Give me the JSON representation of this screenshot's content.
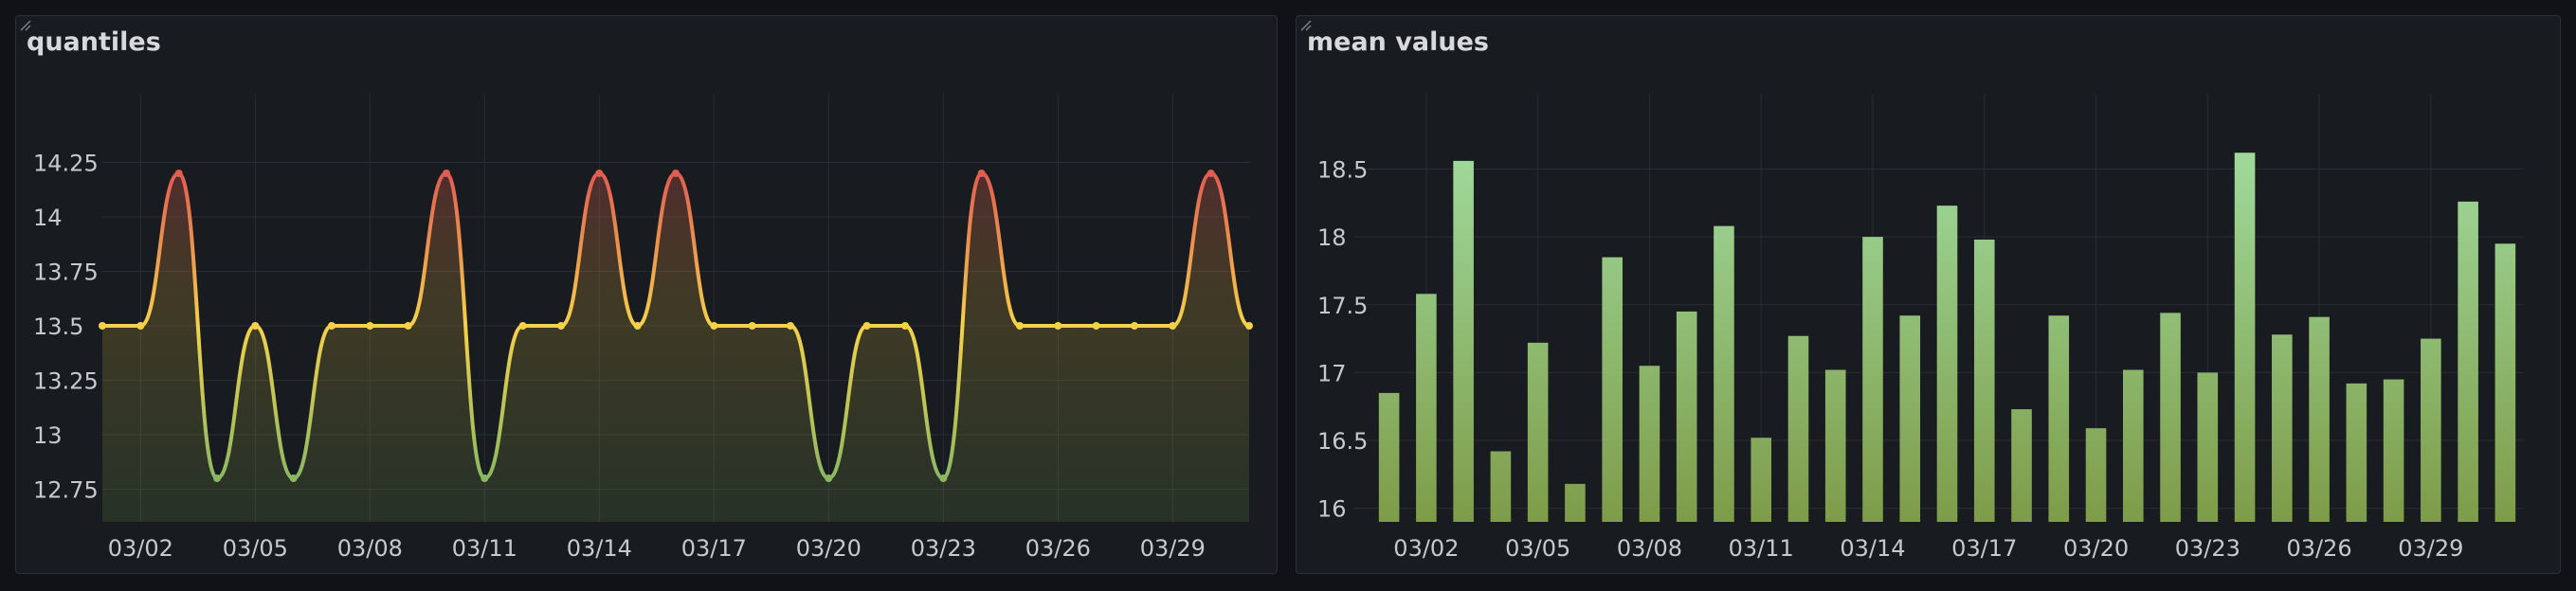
{
  "panels": {
    "left": {
      "title": "quantiles"
    },
    "right": {
      "title": "mean values"
    }
  },
  "colors": {
    "background": "#111217",
    "panel": "#181b1f",
    "grid": "#2a2d33",
    "text": "#c7c9cc",
    "line_low": "#8ab862",
    "line_mid": "#f5d14a",
    "line_high": "#e25c52",
    "bar_top": "#9fd99a",
    "bar_bottom": "#7e9c49"
  },
  "chart_data": [
    {
      "type": "line",
      "title": "quantiles",
      "x_labels": [
        "03/02",
        "03/05",
        "03/08",
        "03/11",
        "03/14",
        "03/17",
        "03/20",
        "03/23",
        "03/26",
        "03/29"
      ],
      "y_ticks": [
        "14.25",
        "14",
        "13.75",
        "13.5",
        "13.25",
        "13",
        "12.75"
      ],
      "ylim": [
        12.6,
        14.5
      ],
      "x": [
        "03/01",
        "03/02",
        "03/03",
        "03/04",
        "03/05",
        "03/06",
        "03/07",
        "03/08",
        "03/09",
        "03/10",
        "03/11",
        "03/12",
        "03/13",
        "03/14",
        "03/15",
        "03/16",
        "03/17",
        "03/18",
        "03/19",
        "03/20",
        "03/21",
        "03/22",
        "03/23",
        "03/24",
        "03/25",
        "03/26",
        "03/27",
        "03/28",
        "03/29",
        "03/30",
        "03/31"
      ],
      "values": [
        13.5,
        13.5,
        14.2,
        12.8,
        13.5,
        12.8,
        13.5,
        13.5,
        13.5,
        14.2,
        12.8,
        13.5,
        13.5,
        14.2,
        13.5,
        14.2,
        13.5,
        13.5,
        13.5,
        12.8,
        13.5,
        13.5,
        12.8,
        14.2,
        13.5,
        13.5,
        13.5,
        13.5,
        13.5,
        14.2,
        13.5
      ],
      "grid": true,
      "legend": "none"
    },
    {
      "type": "bar",
      "title": "mean values",
      "x_labels": [
        "03/02",
        "03/05",
        "03/08",
        "03/11",
        "03/14",
        "03/17",
        "03/20",
        "03/23",
        "03/26",
        "03/29"
      ],
      "y_ticks": [
        "18.5",
        "18",
        "17.5",
        "17",
        "16.5",
        "16"
      ],
      "ylim": [
        15.9,
        18.95
      ],
      "categories": [
        "03/01",
        "03/02",
        "03/03",
        "03/04",
        "03/05",
        "03/06",
        "03/07",
        "03/08",
        "03/09",
        "03/10",
        "03/11",
        "03/12",
        "03/13",
        "03/14",
        "03/15",
        "03/16",
        "03/17",
        "03/18",
        "03/19",
        "03/20",
        "03/21",
        "03/22",
        "03/23",
        "03/24",
        "03/25",
        "03/26",
        "03/27",
        "03/28",
        "03/29",
        "03/30",
        "03/31"
      ],
      "values": [
        16.85,
        17.58,
        18.56,
        16.42,
        17.22,
        16.18,
        17.85,
        17.05,
        17.45,
        18.08,
        16.52,
        17.27,
        17.02,
        18.0,
        17.42,
        18.23,
        17.98,
        16.73,
        17.42,
        16.59,
        17.02,
        17.44,
        17.0,
        18.62,
        17.28,
        17.41,
        16.92,
        16.95,
        17.25,
        18.26,
        17.95
      ],
      "grid": true,
      "legend": "none"
    }
  ]
}
